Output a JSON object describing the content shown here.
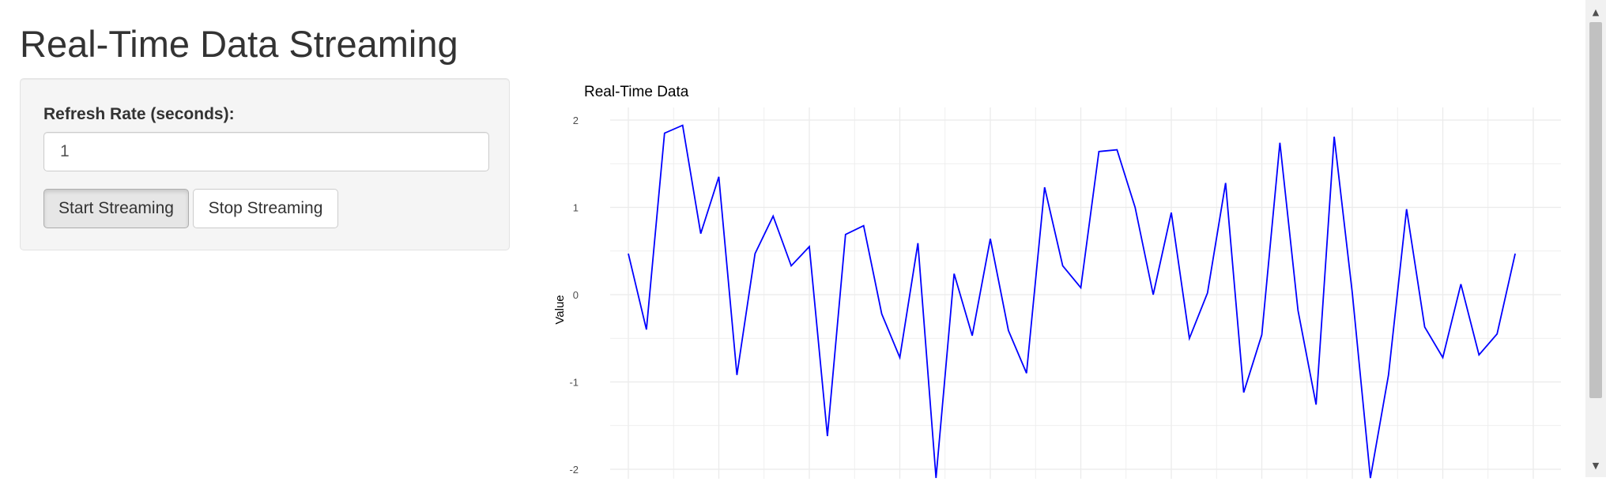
{
  "page": {
    "title": "Real-Time Data Streaming"
  },
  "controls": {
    "refresh_label": "Refresh Rate (seconds):",
    "refresh_value": "1",
    "start_label": "Start Streaming",
    "stop_label": "Stop Streaming"
  },
  "scrollbar": {
    "up_icon": "▲",
    "down_icon": "▼"
  },
  "colors": {
    "line": "#0000ff",
    "grid": "#ebebeb",
    "text": "#333333"
  },
  "chart_data": {
    "type": "line",
    "title": "Real-Time Data",
    "xlabel": "",
    "ylabel": "Value",
    "ylim": [
      -2.1,
      2.15
    ],
    "yticks": [
      2,
      1,
      0,
      -1,
      -2
    ],
    "grid": true,
    "legend": "none",
    "series": [
      {
        "values": [
          0.47,
          -0.4,
          1.85,
          1.94,
          0.7,
          1.35,
          -0.92,
          0.47,
          0.9,
          0.33,
          0.55,
          -1.62,
          0.69,
          0.79,
          -0.22,
          -0.72,
          0.59,
          -2.1,
          0.24,
          -0.47,
          0.64,
          -0.41,
          -0.9,
          1.23,
          0.33,
          0.08,
          1.64,
          1.66,
          1.0,
          0.0,
          0.94,
          -0.5,
          0.02,
          1.28,
          -1.12,
          -0.46,
          1.74,
          -0.18,
          -1.26,
          1.81,
          0.02,
          -2.1,
          -0.92,
          0.98,
          -0.37,
          -0.72,
          0.12,
          -0.69,
          -0.45,
          0.47
        ]
      }
    ]
  }
}
